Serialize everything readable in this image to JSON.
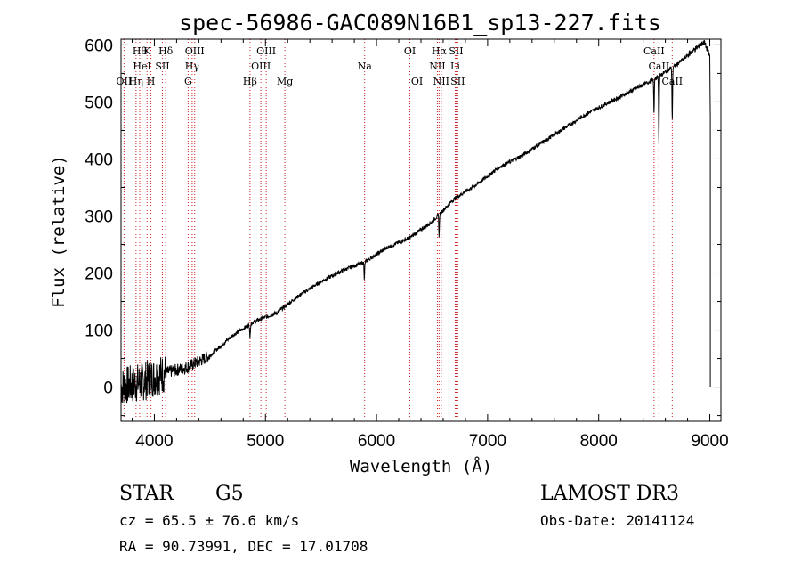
{
  "chart_data": {
    "type": "line",
    "title": "spec-56986-GAC089N16B1_sp13-227.fits",
    "xlabel": "Wavelength (Å)",
    "ylabel": "Flux (relative)",
    "xlim": [
      3700,
      9100
    ],
    "ylim": [
      -60,
      610
    ],
    "x_ticks": [
      4000,
      5000,
      6000,
      7000,
      8000,
      9000
    ],
    "y_ticks": [
      0,
      100,
      200,
      300,
      400,
      500,
      600
    ],
    "grid": false,
    "series": [
      {
        "name": "flux",
        "continuum_points": [
          [
            3700,
            0
          ],
          [
            3900,
            10
          ],
          [
            4100,
            25
          ],
          [
            4300,
            35
          ],
          [
            4500,
            55
          ],
          [
            4700,
            90
          ],
          [
            4900,
            115
          ],
          [
            5100,
            130
          ],
          [
            5300,
            160
          ],
          [
            5500,
            185
          ],
          [
            5700,
            205
          ],
          [
            5900,
            220
          ],
          [
            6100,
            245
          ],
          [
            6300,
            262
          ],
          [
            6500,
            290
          ],
          [
            6700,
            330
          ],
          [
            6900,
            355
          ],
          [
            7100,
            385
          ],
          [
            7300,
            405
          ],
          [
            7500,
            430
          ],
          [
            7700,
            455
          ],
          [
            7900,
            480
          ],
          [
            8100,
            500
          ],
          [
            8300,
            520
          ],
          [
            8500,
            540
          ],
          [
            8700,
            565
          ],
          [
            8850,
            590
          ],
          [
            8950,
            605
          ],
          [
            9000,
            580
          ]
        ],
        "absorption_features": [
          {
            "x": 4861,
            "depth": 25
          },
          {
            "x": 5890,
            "depth": 30
          },
          {
            "x": 6563,
            "depth": 40
          },
          {
            "x": 8498,
            "depth": 60
          },
          {
            "x": 8542,
            "depth": 120
          },
          {
            "x": 8662,
            "depth": 95
          }
        ]
      }
    ],
    "line_markers": [
      {
        "x": 3727,
        "label": "OII",
        "row": 2
      },
      {
        "x": 3835,
        "label": "Hη",
        "row": 2
      },
      {
        "x": 3868,
        "label": "Hθ",
        "row": 0
      },
      {
        "x": 3889,
        "label": "HeI",
        "row": 1
      },
      {
        "x": 3934,
        "label": "K",
        "row": 0
      },
      {
        "x": 3969,
        "label": "H",
        "row": 2
      },
      {
        "x": 4072,
        "label": "SII",
        "row": 1
      },
      {
        "x": 4102,
        "label": "Hδ",
        "row": 0
      },
      {
        "x": 4304,
        "label": "G",
        "row": 2
      },
      {
        "x": 4340,
        "label": "Hγ",
        "row": 1
      },
      {
        "x": 4363,
        "label": "OIII",
        "row": 0
      },
      {
        "x": 4861,
        "label": "Hβ",
        "row": 2
      },
      {
        "x": 4959,
        "label": "OIII",
        "row": 1
      },
      {
        "x": 5007,
        "label": "OIII",
        "row": 0
      },
      {
        "x": 5175,
        "label": "Mg",
        "row": 2
      },
      {
        "x": 5893,
        "label": "Na",
        "row": 1
      },
      {
        "x": 6300,
        "label": "OI",
        "row": 0
      },
      {
        "x": 6364,
        "label": "OI",
        "row": 2
      },
      {
        "x": 6548,
        "label": "NII",
        "row": 1
      },
      {
        "x": 6563,
        "label": "Hα",
        "row": 0
      },
      {
        "x": 6583,
        "label": "NII",
        "row": 2
      },
      {
        "x": 6708,
        "label": "Li",
        "row": 1
      },
      {
        "x": 6716,
        "label": "SII",
        "row": 0
      },
      {
        "x": 6731,
        "label": "SII",
        "row": 2
      },
      {
        "x": 8498,
        "label": "CaII",
        "row": 0
      },
      {
        "x": 8542,
        "label": "CaII",
        "row": 1
      },
      {
        "x": 8662,
        "label": "CaII",
        "row": 2
      }
    ]
  },
  "info": {
    "object_class": "STAR",
    "subclass": "G5",
    "survey": "LAMOST DR3",
    "redshift": "cz = 65.5 ± 76.6 km/s",
    "obs_date": "Obs-Date: 20141124",
    "coords": "RA =  90.73991, DEC =  17.01708"
  },
  "colors": {
    "line": "#000000",
    "marker": "#cc2222",
    "axis": "#000000"
  }
}
